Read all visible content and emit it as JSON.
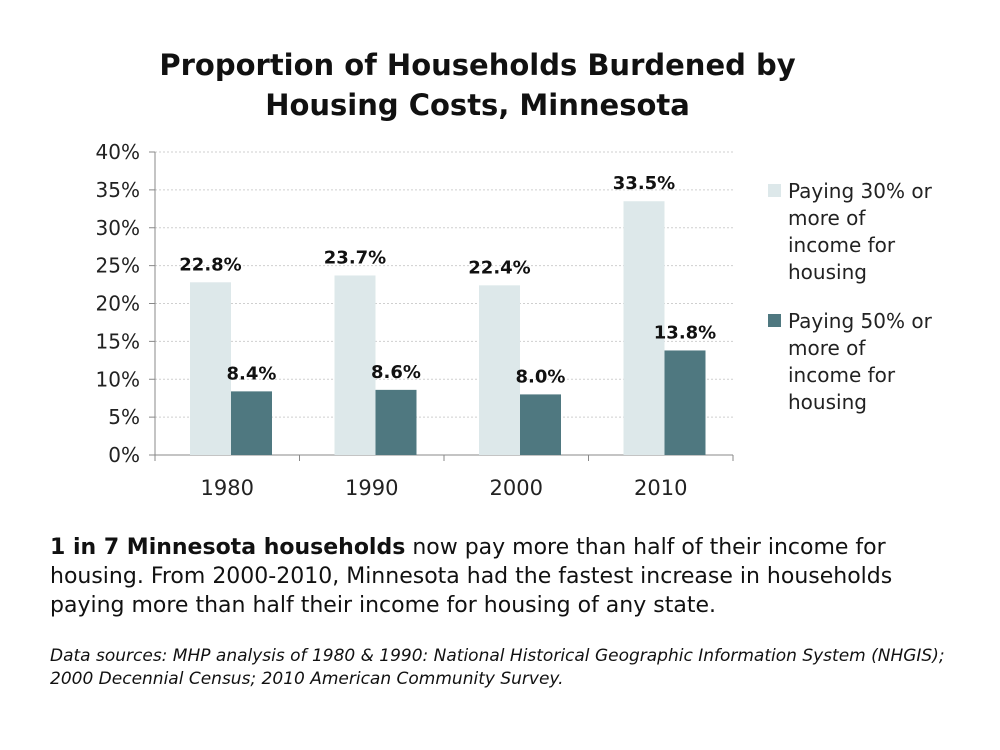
{
  "chart_data": {
    "type": "bar",
    "title": "Proportion of Households Burdened by Housing Costs, Minnesota",
    "title_lines": [
      "Proportion of Households Burdened by",
      "Housing Costs, Minnesota"
    ],
    "categories": [
      "1980",
      "1990",
      "2000",
      "2010"
    ],
    "series": [
      {
        "name": "Paying 30% or more of income for housing",
        "values": [
          22.8,
          23.7,
          22.4,
          33.5
        ],
        "labels": [
          "22.8%",
          "23.7%",
          "22.4%",
          "33.5%"
        ],
        "color": "#dde8ea"
      },
      {
        "name": "Paying 50% or more of income for housing",
        "values": [
          8.4,
          8.6,
          8.0,
          13.8
        ],
        "labels": [
          "8.4%",
          "8.6%",
          "8.0%",
          "13.8%"
        ],
        "color": "#4f7880"
      }
    ],
    "y_ticks": [
      "0%",
      "5%",
      "10%",
      "15%",
      "20%",
      "25%",
      "30%",
      "35%",
      "40%"
    ],
    "ylim": [
      0,
      40
    ],
    "grid": true,
    "legend_position": "right",
    "xlabel": "",
    "ylabel": ""
  },
  "legend": {
    "items": [
      {
        "lines": [
          "Paying 30% or",
          "more of",
          "income for",
          "housing"
        ]
      },
      {
        "lines": [
          "Paying 50% or",
          "more of",
          "income for",
          "housing"
        ]
      }
    ]
  },
  "caption": {
    "bold": "1 in 7 Minnesota households",
    "rest": " now pay more than half of their income for housing. From 2000-2010, Minnesota had the fastest increase in households paying more than half their income for housing of any state."
  },
  "source": "Data sources: MHP analysis of 1980 & 1990: National Historical Geographic Information System (NHGIS); 2000 Decennial Census; 2010 American Community Survey."
}
